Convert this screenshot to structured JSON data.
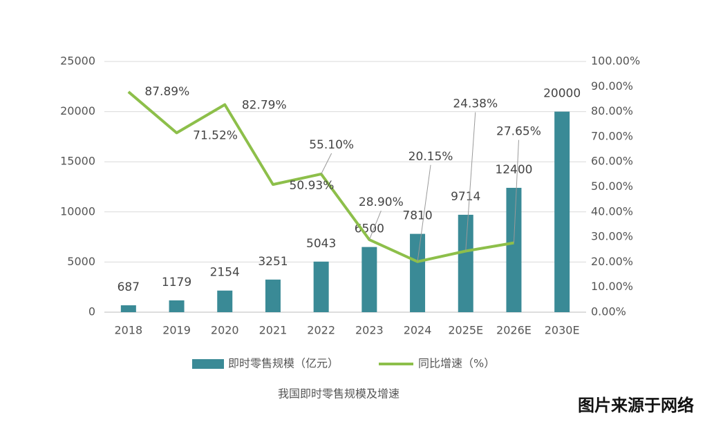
{
  "chart_data": {
    "type": "bar_line",
    "categories": [
      "2018",
      "2019",
      "2020",
      "2021",
      "2022",
      "2023",
      "2024",
      "2025E",
      "2026E",
      "2030E"
    ],
    "series": [
      {
        "name": "即时零售规模（亿元）",
        "color": "#3a8a96",
        "type": "bar",
        "values": [
          687,
          1179,
          2154,
          3251,
          5043,
          6500,
          7810,
          9714,
          12400,
          20000
        ]
      },
      {
        "name": "同比增速（%）",
        "color": "#8dbf4a",
        "type": "line",
        "axis": "y2",
        "values": [
          87.89,
          71.52,
          82.79,
          50.93,
          55.1,
          28.9,
          20.15,
          24.38,
          27.65,
          null
        ],
        "value_labels": [
          "87.89%",
          "71.52%",
          "82.79%",
          "50.93%",
          "55.10%",
          "28.90%",
          "20.15%",
          "24.38%",
          "27.65%",
          null
        ]
      }
    ],
    "ylim": [
      0,
      25000
    ],
    "yticks": [
      0,
      5000,
      10000,
      15000,
      20000,
      25000
    ],
    "y2lim": [
      0,
      100
    ],
    "y2ticks": [
      {
        "value": 0,
        "label": "0.00%"
      },
      {
        "value": 10,
        "label": "10.00%"
      },
      {
        "value": 20,
        "label": "20.00%"
      },
      {
        "value": 30,
        "label": "30.00%"
      },
      {
        "value": 40,
        "label": "40.00%"
      },
      {
        "value": 50,
        "label": "50.00%"
      },
      {
        "value": 60,
        "label": "60.00%"
      },
      {
        "value": 70,
        "label": "70.00%"
      },
      {
        "value": 80,
        "label": "80.00%"
      },
      {
        "value": 90,
        "label": "90.00%"
      },
      {
        "value": 100,
        "label": "100.00%"
      }
    ],
    "grid": true,
    "caption": "我国即时零售规模及增速",
    "watermark": "图片来源于网络"
  }
}
